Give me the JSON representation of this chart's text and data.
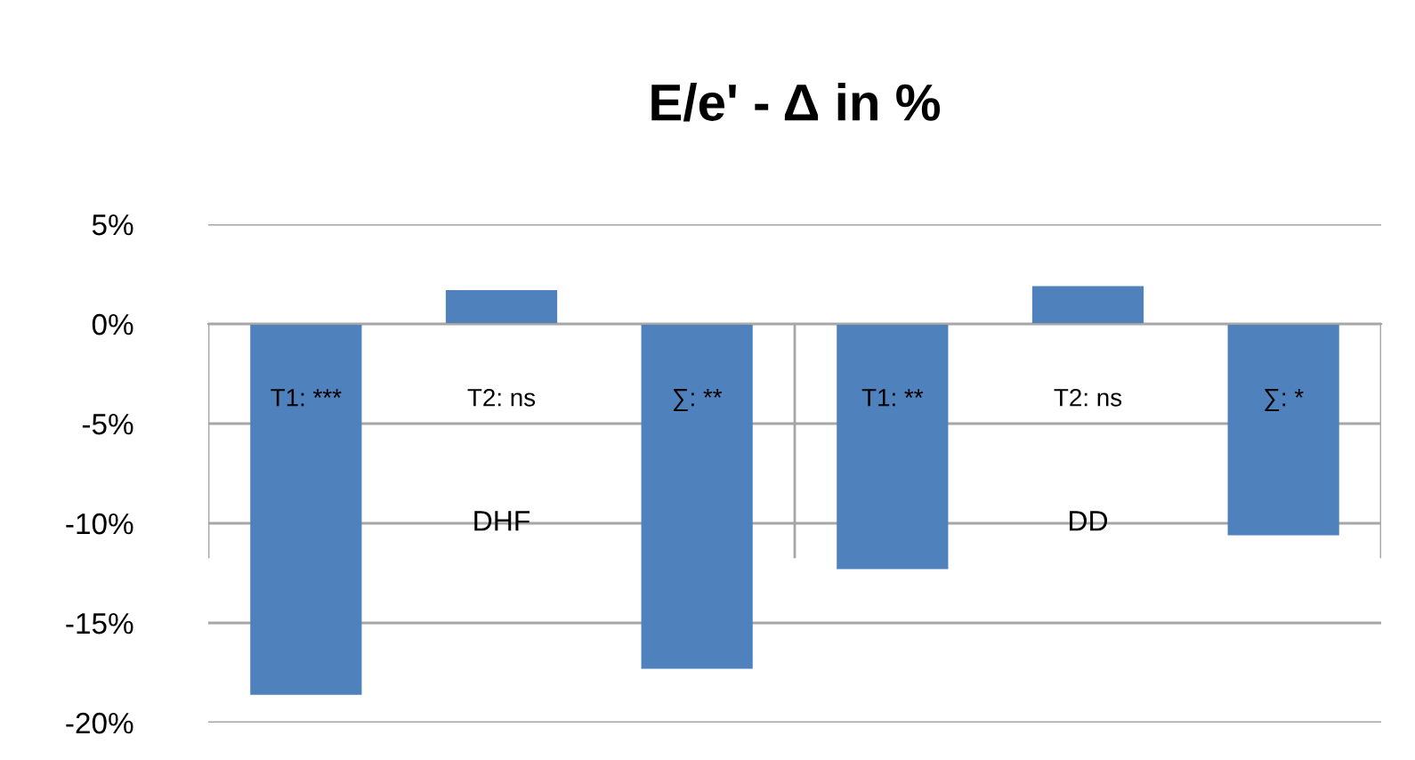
{
  "chart_data": {
    "type": "bar",
    "title": "E/e' - Δ in %",
    "categories": [
      "T1: ***",
      "T2: ns",
      "∑: **",
      "T1: **",
      "T2: ns",
      "∑: *"
    ],
    "values": [
      -18.6,
      1.7,
      -17.3,
      -12.3,
      1.9,
      -10.6
    ],
    "color": "#4f81bd",
    "annotations": [
      "DHF",
      "DD"
    ],
    "ylim": [
      -20,
      5
    ],
    "yticks": [
      {
        "value": -20,
        "label": "-20%"
      },
      {
        "value": -15,
        "label": "-15%"
      },
      {
        "value": -10,
        "label": "-10%"
      },
      {
        "value": -5,
        "label": "-5%"
      },
      {
        "value": 0,
        "label": "0%"
      },
      {
        "value": 5,
        "label": "5%"
      }
    ],
    "grid": "y",
    "legend": false
  }
}
